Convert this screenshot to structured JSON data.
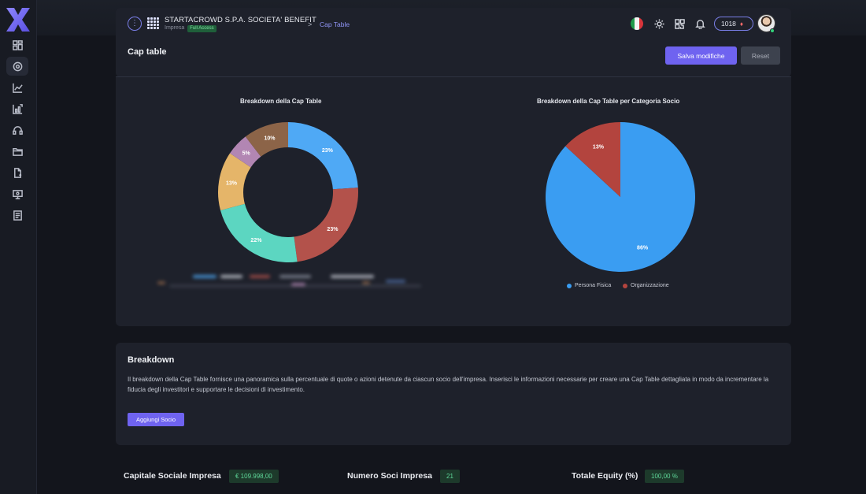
{
  "breadcrumb": {
    "company": "STARTACROWD S.P.A. SOCIETA' BENEFIT",
    "type": "Impresa",
    "access_badge": "Full Access",
    "separator": ">",
    "current": "Cap Table"
  },
  "header": {
    "points": "1018",
    "icons": [
      "flag-italy",
      "sun-icon",
      "qr-icon",
      "bell-icon",
      "gem-icon",
      "avatar"
    ]
  },
  "sidebar": {
    "icons": [
      "dashboard-icon",
      "cap-table-icon",
      "chart-icon",
      "growth-icon",
      "support-icon",
      "folder-icon",
      "document-icon",
      "presentation-icon",
      "report-icon"
    ],
    "active_index": 1
  },
  "page": {
    "title": "Cap table",
    "save_label": "Salva modifiche",
    "reset_label": "Reset"
  },
  "chart_data": [
    {
      "type": "pie",
      "variant": "donut",
      "title": "Breakdown della Cap Table",
      "slices": [
        {
          "label": "23%",
          "value": 23,
          "color": "#4fa9f5"
        },
        {
          "label": "23%",
          "value": 23,
          "color": "#b3524b"
        },
        {
          "label": "22%",
          "value": 22,
          "color": "#5cd6c1"
        },
        {
          "label": "13%",
          "value": 13,
          "color": "#e5b569"
        },
        {
          "label": "5%",
          "value": 5,
          "color": "#b286b3"
        },
        {
          "label": "10%",
          "value": 10,
          "color": "#8c6448"
        }
      ],
      "legend_obscured": true
    },
    {
      "type": "pie",
      "title": "Breakdown della Cap Table per Categoria Socio",
      "slices": [
        {
          "name": "Persona Fisica",
          "label": "86%",
          "value": 86,
          "color": "#3a9df2"
        },
        {
          "name": "Organizzazione",
          "label": "13%",
          "value": 13,
          "color": "#b3443e"
        }
      ],
      "legend_placement": "bottom"
    }
  ],
  "breakdown": {
    "title": "Breakdown",
    "description": "Il breakdown della Cap Table fornisce una panoramica sulla percentuale di quote o azioni detenute da ciascun socio dell'impresa. Inserisci le informazioni necessarie per creare una Cap Table dettagliata in modo da incrementare la fiducia degli investitori e supportare le decisioni di investimento.",
    "add_label": "Aggiungi Socio"
  },
  "stats": [
    {
      "label": "Capitale Sociale Impresa",
      "value": "€ 109.998,00"
    },
    {
      "label": "Numero Soci Impresa",
      "value": "21"
    },
    {
      "label": "Totale Equity (%)",
      "value": "100,00 %"
    }
  ]
}
